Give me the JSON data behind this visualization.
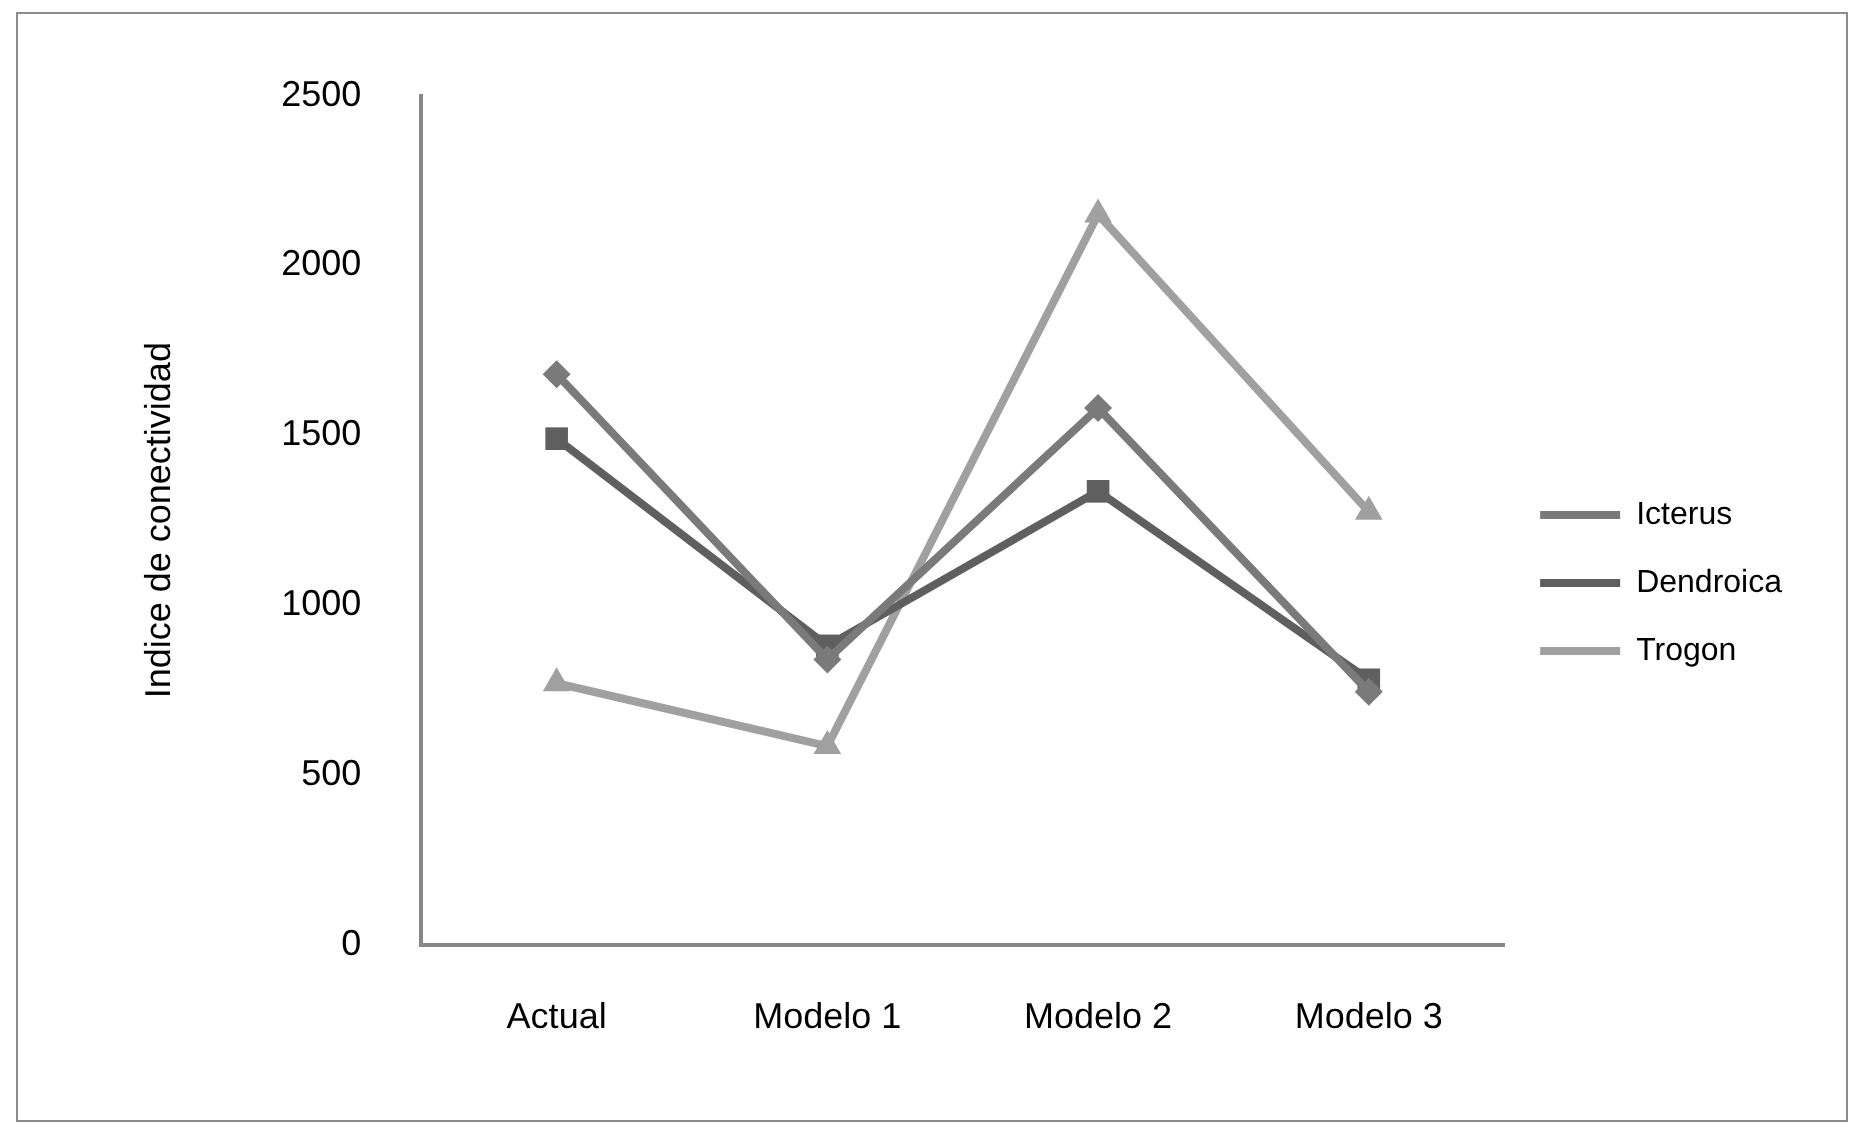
{
  "chart_data": {
    "type": "line",
    "ylabel": "Indice de conectividad",
    "categories": [
      "Actual",
      "Modelo 1",
      "Modelo 2",
      "Modelo 3"
    ],
    "series": [
      {
        "name": "Icterus",
        "color": "#7a7a7a",
        "marker": "diamond",
        "values": [
          1680,
          840,
          1580,
          745
        ]
      },
      {
        "name": "Dendroica",
        "color": "#5f5f5f",
        "marker": "square",
        "values": [
          1490,
          880,
          1335,
          780
        ]
      },
      {
        "name": "Trogon",
        "color": "#a0a0a0",
        "marker": "triangle",
        "values": [
          770,
          585,
          2150,
          1275
        ]
      }
    ],
    "ylim": [
      0,
      2500
    ],
    "yticks": [
      0,
      500,
      1000,
      1500,
      2000,
      2500
    ],
    "grid": false,
    "legend": "right"
  }
}
